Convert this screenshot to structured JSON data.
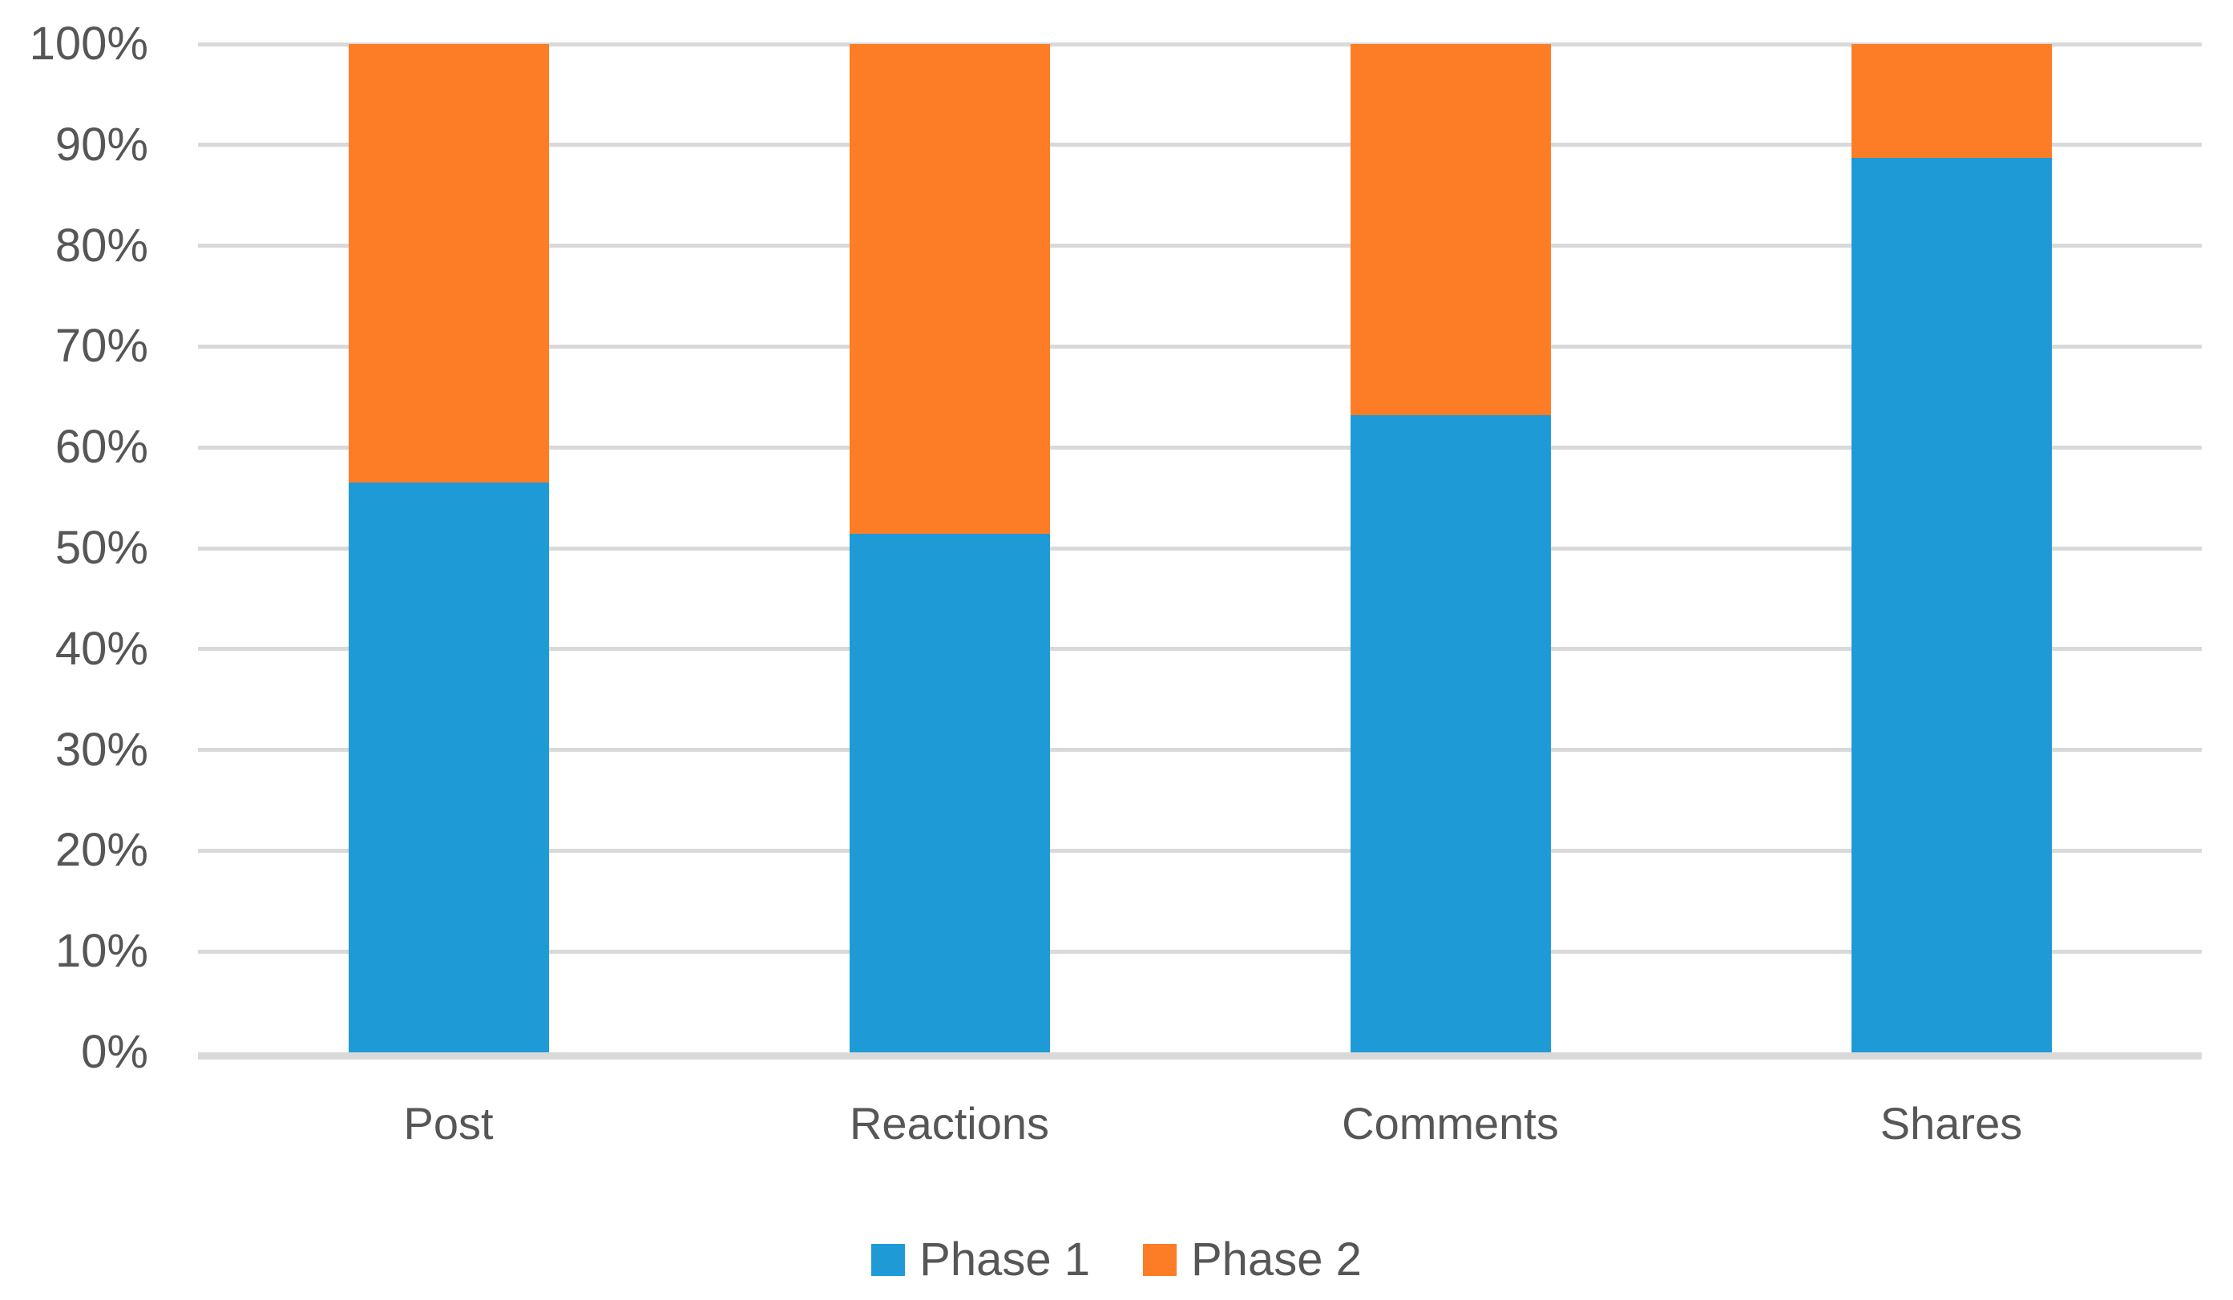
{
  "chart_data": {
    "type": "bar",
    "variant": "100-percent-stacked-column",
    "title": "",
    "xlabel": "",
    "ylabel": "",
    "categories": [
      "Post",
      "Reactions",
      "Comments",
      "Shares"
    ],
    "series": [
      {
        "name": "Phase 1",
        "color": "#1E9BD7",
        "values": [
          56.5,
          51.4,
          63.2,
          88.7
        ]
      },
      {
        "name": "Phase 2",
        "color": "#FC7D26",
        "values": [
          43.5,
          48.6,
          36.8,
          11.3
        ]
      }
    ],
    "ylim": [
      0,
      100
    ],
    "ytick_step": 10,
    "ytick_labels": [
      "0%",
      "10%",
      "20%",
      "30%",
      "40%",
      "50%",
      "60%",
      "70%",
      "80%",
      "90%",
      "100%"
    ],
    "grid": true,
    "legend_position": "bottom",
    "colors": {
      "background": "#FFFFFF",
      "gridline": "#D9D9D9",
      "axis_line": "#D9D9D9",
      "tick_label": "#565656",
      "category_label": "#565656",
      "legend_label": "#565656"
    }
  }
}
